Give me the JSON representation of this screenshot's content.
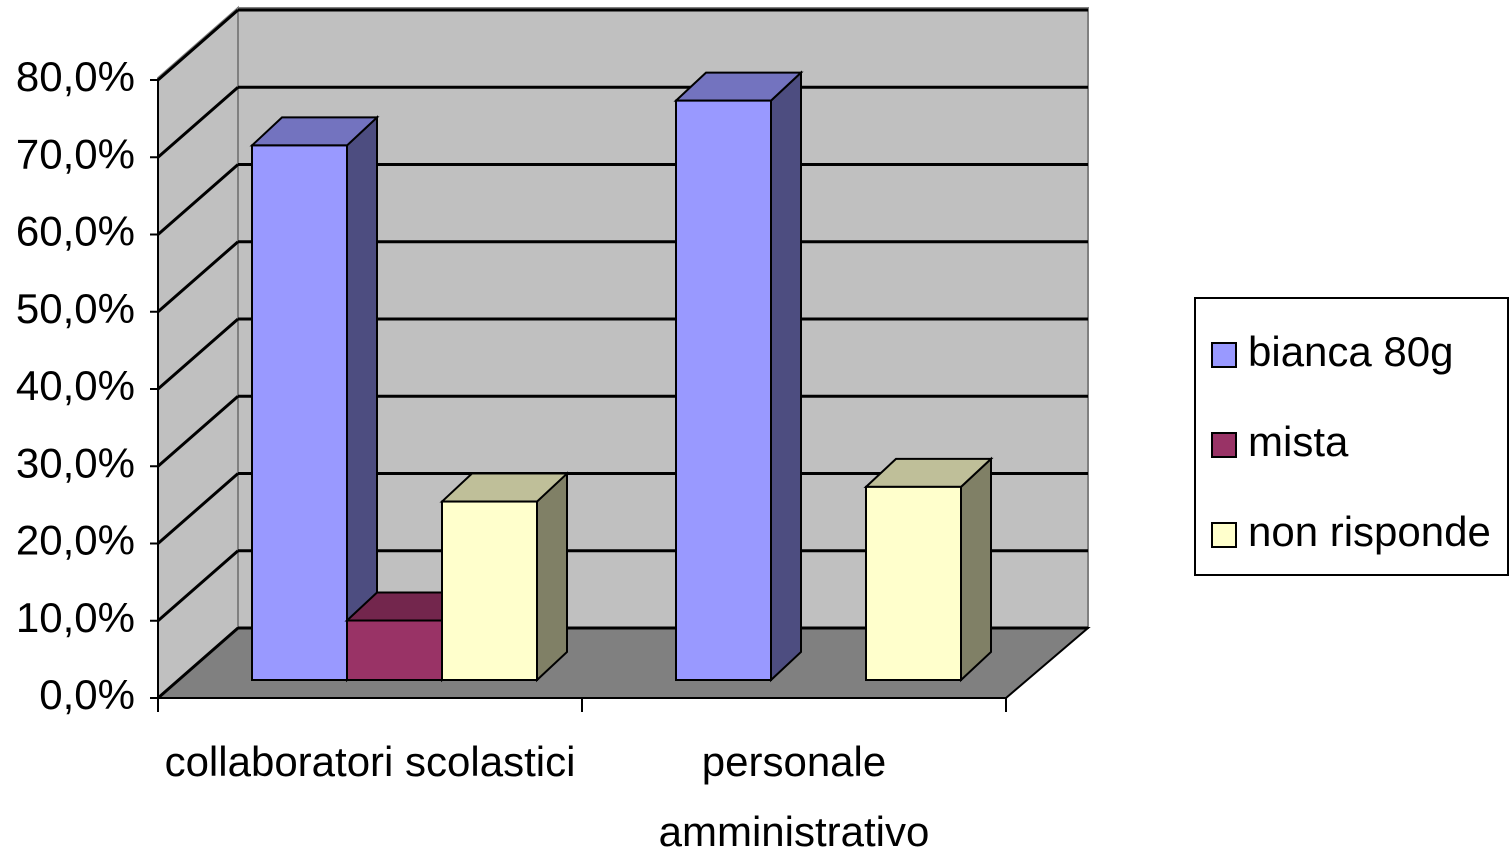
{
  "chart_data": {
    "type": "bar3d",
    "categories": [
      "collaboratori scolastici",
      "personale amministrativo"
    ],
    "series": [
      {
        "name": "bianca 80g",
        "color": "#9999ff",
        "values": [
          69.2,
          75.0
        ]
      },
      {
        "name": "mista",
        "color": "#993366",
        "values": [
          7.7,
          0
        ]
      },
      {
        "name": "non risponde",
        "color": "#ffffcc",
        "values": [
          23.1,
          25.0
        ]
      }
    ],
    "ylim": [
      0,
      80
    ],
    "yticks": [
      {
        "value": 0,
        "label": "0,0%"
      },
      {
        "value": 10,
        "label": "10,0%"
      },
      {
        "value": 20,
        "label": "20,0%"
      },
      {
        "value": 30,
        "label": "30,0%"
      },
      {
        "value": 40,
        "label": "40,0%"
      },
      {
        "value": 50,
        "label": "50,0%"
      },
      {
        "value": 60,
        "label": "60,0%"
      },
      {
        "value": 70,
        "label": "70,0%"
      },
      {
        "value": 80,
        "label": "80,0%"
      }
    ],
    "grid": true,
    "legend": "right"
  }
}
